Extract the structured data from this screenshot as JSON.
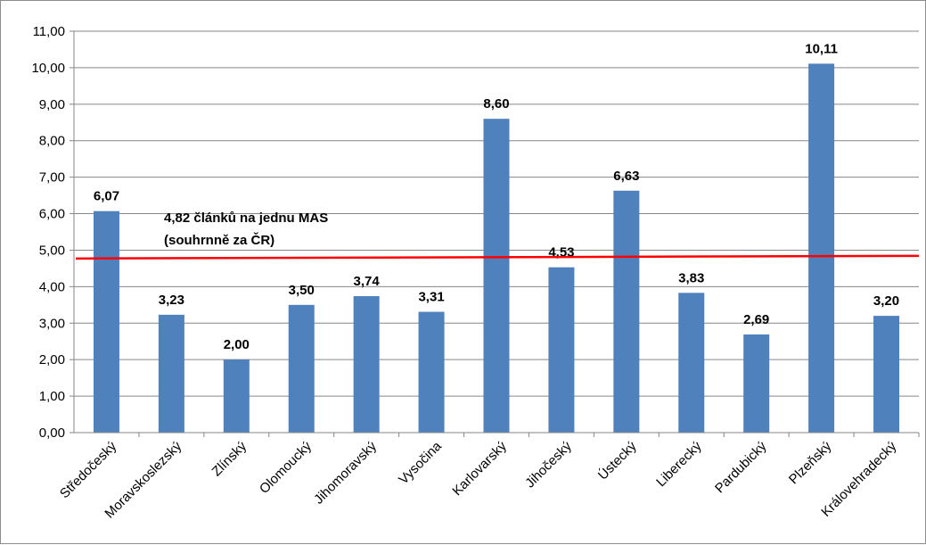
{
  "chart_data": {
    "type": "bar",
    "categories": [
      "Středočeský",
      "Moravskoslezský",
      "Zlínský",
      "Olomoucký",
      "Jihomoravský",
      "Vysočina",
      "Karlovarský",
      "Jihočeský",
      "Ústecký",
      "Liberecký",
      "Pardubický",
      "Plzeňský",
      "Královehradecký"
    ],
    "values": [
      6.07,
      3.23,
      2.0,
      3.5,
      3.74,
      3.31,
      8.6,
      4.53,
      6.63,
      3.83,
      2.69,
      10.11,
      3.2
    ],
    "value_labels": [
      "6,07",
      "3,23",
      "2,00",
      "3,50",
      "3,74",
      "3,31",
      "8,60",
      "4,53",
      "6,63",
      "3,83",
      "2,69",
      "10,11",
      "3,20"
    ],
    "yticks": [
      "0,00",
      "1,00",
      "2,00",
      "3,00",
      "4,00",
      "5,00",
      "6,00",
      "7,00",
      "8,00",
      "9,00",
      "10,00",
      "11,00"
    ],
    "ylim": [
      0,
      11
    ],
    "grid": true,
    "bar_color": "#4f81bd",
    "reference_line": {
      "value": 4.82,
      "color": "#ff0000",
      "label_line1": "4,82 článků na jednu MAS",
      "label_line2": "(souhrnně za ČR)"
    },
    "title": "",
    "xlabel": "",
    "ylabel": ""
  }
}
